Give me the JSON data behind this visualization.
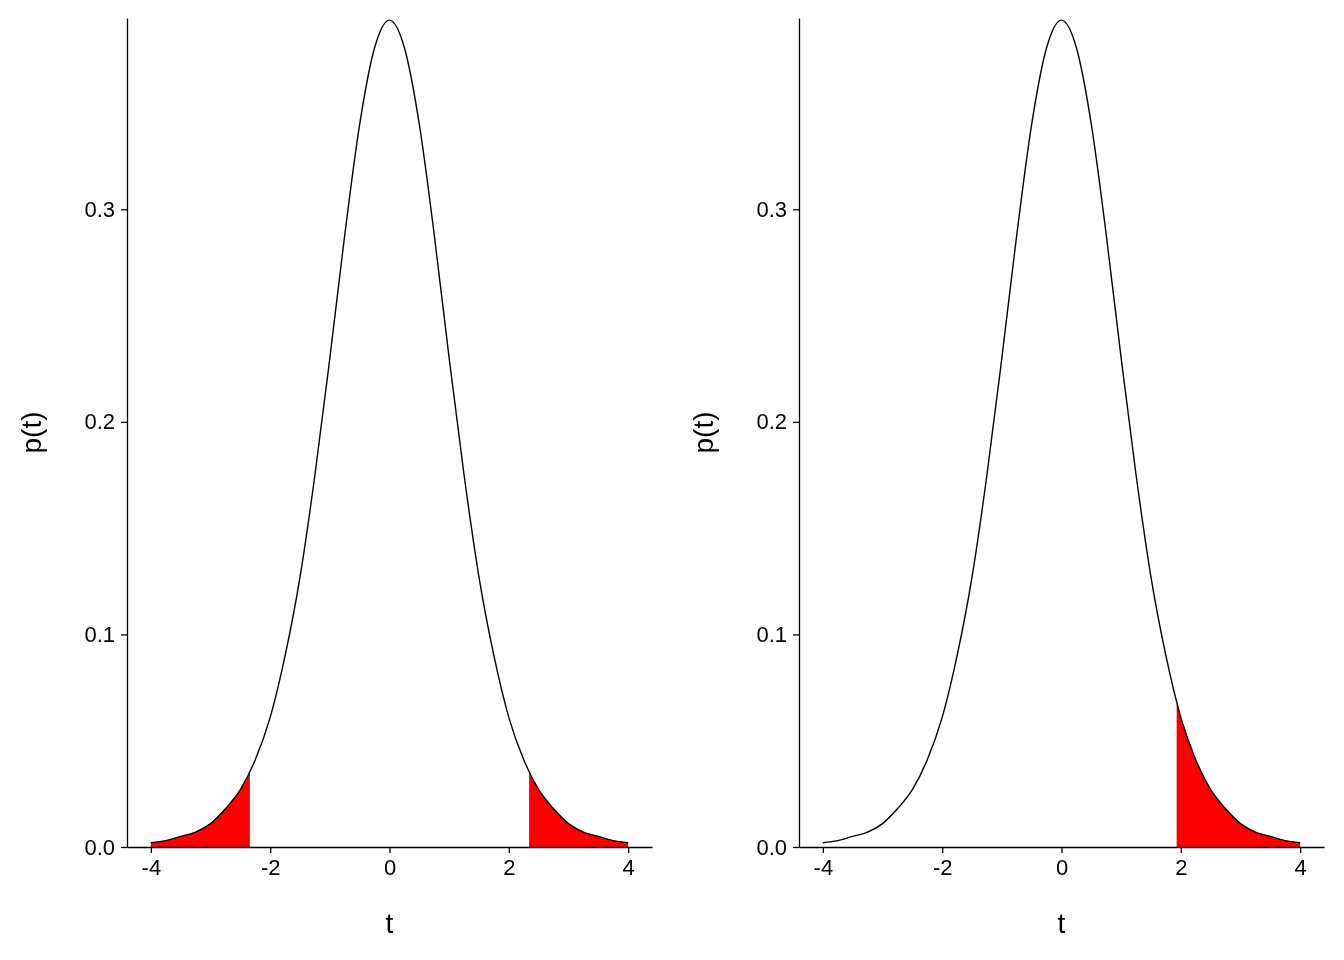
{
  "chart_data": [
    {
      "type": "line",
      "xlabel": "t",
      "ylabel": "p(t)",
      "xlim": [
        -4.4,
        4.4
      ],
      "ylim": [
        0,
        0.39
      ],
      "xticks": [
        -4,
        -2,
        0,
        2,
        4
      ],
      "yticks": [
        {
          "value": 0,
          "label": "0.0"
        },
        0.1,
        0.2,
        0.3
      ],
      "series": [
        {
          "type": "area",
          "color": "#ff0000",
          "x": [
            -4,
            -3.75,
            -3.5,
            -3.25,
            -3,
            -2.75,
            -2.5,
            -2.34
          ],
          "values": [
            0.002,
            0.003,
            0.005,
            0.007,
            0.011,
            0.018,
            0.027,
            0.035
          ]
        },
        {
          "type": "area",
          "color": "#ff0000",
          "x": [
            2.34,
            2.5,
            2.75,
            3,
            3.25,
            3.5,
            3.75,
            4
          ],
          "values": [
            0.035,
            0.027,
            0.018,
            0.011,
            0.007,
            0.005,
            0.003,
            0.002
          ]
        },
        {
          "type": "line",
          "color": "#000000",
          "x": [
            -4,
            -3.75,
            -3.5,
            -3.25,
            -3,
            -2.75,
            -2.5,
            -2.25,
            -2,
            -1.75,
            -1.5,
            -1.25,
            -1,
            -0.75,
            -0.5,
            -0.25,
            0,
            0.25,
            0.5,
            0.75,
            1,
            1.25,
            1.5,
            1.75,
            2,
            2.25,
            2.5,
            2.75,
            3,
            3.25,
            3.5,
            3.75,
            4
          ],
          "values": [
            0.002,
            0.003,
            0.005,
            0.007,
            0.011,
            0.018,
            0.027,
            0.041,
            0.061,
            0.09,
            0.127,
            0.175,
            0.23,
            0.288,
            0.34,
            0.376,
            0.389,
            0.376,
            0.34,
            0.288,
            0.23,
            0.175,
            0.127,
            0.09,
            0.061,
            0.041,
            0.027,
            0.018,
            0.011,
            0.007,
            0.005,
            0.003,
            0.002
          ]
        }
      ]
    },
    {
      "type": "line",
      "xlabel": "t",
      "ylabel": "p(t)",
      "xlim": [
        -4.4,
        4.4
      ],
      "ylim": [
        0,
        0.39
      ],
      "xticks": [
        -4,
        -2,
        0,
        2,
        4
      ],
      "yticks": [
        {
          "value": 0,
          "label": "0.0"
        },
        0.1,
        0.2,
        0.3
      ],
      "series": [
        {
          "type": "area",
          "color": "#ff0000",
          "x": [
            1.93,
            2,
            2.25,
            2.5,
            2.75,
            3,
            3.25,
            3.5,
            3.75,
            4
          ],
          "values": [
            0.068,
            0.061,
            0.041,
            0.027,
            0.018,
            0.011,
            0.007,
            0.005,
            0.003,
            0.002
          ]
        },
        {
          "type": "line",
          "color": "#000000",
          "x": [
            -4,
            -3.75,
            -3.5,
            -3.25,
            -3,
            -2.75,
            -2.5,
            -2.25,
            -2,
            -1.75,
            -1.5,
            -1.25,
            -1,
            -0.75,
            -0.5,
            -0.25,
            0,
            0.25,
            0.5,
            0.75,
            1,
            1.25,
            1.5,
            1.75,
            2,
            2.25,
            2.5,
            2.75,
            3,
            3.25,
            3.5,
            3.75,
            4
          ],
          "values": [
            0.002,
            0.003,
            0.005,
            0.007,
            0.011,
            0.018,
            0.027,
            0.041,
            0.061,
            0.09,
            0.127,
            0.175,
            0.23,
            0.288,
            0.34,
            0.376,
            0.389,
            0.376,
            0.34,
            0.288,
            0.23,
            0.175,
            0.127,
            0.09,
            0.061,
            0.041,
            0.027,
            0.018,
            0.011,
            0.007,
            0.005,
            0.003,
            0.002
          ]
        }
      ]
    }
  ]
}
